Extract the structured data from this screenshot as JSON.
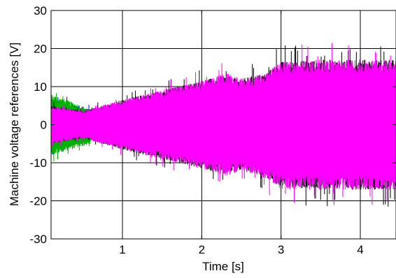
{
  "chart_data": {
    "type": "line",
    "title": "",
    "xlabel": "Time [s]",
    "ylabel": "Machine voltage references [V]",
    "xlim": [
      0.1,
      4.45
    ],
    "ylim": [
      -30,
      30
    ],
    "xticks": [
      1,
      2,
      3,
      4
    ],
    "yticks": [
      -30,
      -20,
      -10,
      0,
      10,
      20,
      30
    ],
    "xtick_labels": [
      "1",
      "2",
      "3",
      "4"
    ],
    "ytick_labels": [
      "-30",
      "-20",
      "-10",
      "0",
      "10",
      "20",
      "30"
    ],
    "grid": true,
    "legend": "none",
    "series": [
      {
        "color": "#0000ff",
        "envelope": {
          "t": [
            0.1,
            0.6
          ],
          "upper": [
            7,
            4
          ],
          "lower": [
            -7,
            -4
          ]
        }
      },
      {
        "color": "#00b000",
        "envelope": {
          "t": [
            0.1,
            0.6
          ],
          "upper": [
            8,
            4
          ],
          "lower": [
            -8,
            -5
          ]
        }
      },
      {
        "color": "#000000",
        "envelope": {
          "t": [
            0.1,
            0.5,
            1.0,
            1.5,
            2.0,
            2.3,
            2.5,
            2.8,
            3.0,
            3.5,
            4.0,
            4.45
          ],
          "upper": [
            5,
            3.5,
            6.5,
            9,
            11.5,
            13,
            12,
            13.5,
            16.5,
            17,
            17,
            17
          ],
          "lower": [
            -5,
            -3.5,
            -6.5,
            -9,
            -11.5,
            -13,
            -12,
            -13.5,
            -16.5,
            -17,
            -17,
            -17
          ]
        }
      },
      {
        "color": "#ff00ff",
        "envelope": {
          "t": [
            0.1,
            0.5,
            1.0,
            1.5,
            2.0,
            2.3,
            2.5,
            2.8,
            3.0,
            3.5,
            4.0,
            4.45
          ],
          "upper": [
            5,
            3.5,
            6.5,
            9,
            11.5,
            13.5,
            12,
            13.5,
            16.5,
            17,
            17,
            17
          ],
          "lower": [
            -5,
            -3.5,
            -6.5,
            -9,
            -11.5,
            -13.5,
            -12,
            -14,
            -17,
            -17,
            -17,
            -17
          ]
        }
      }
    ]
  }
}
